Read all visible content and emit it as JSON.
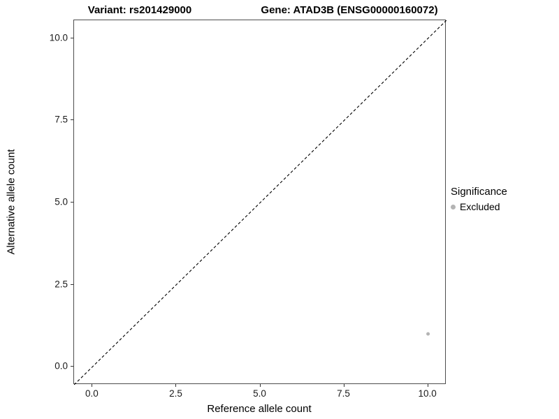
{
  "titles": {
    "left": "Variant: rs201429000",
    "right": "Gene: ATAD3B (ENSG00000160072)"
  },
  "axes": {
    "x_label": "Reference allele count",
    "y_label": "Alternative allele count"
  },
  "legend": {
    "title": "Significance",
    "items": [
      {
        "label": "Excluded",
        "color": "#b4b4b4"
      }
    ]
  },
  "chart_data": {
    "type": "scatter",
    "title": "Variant: rs201429000    Gene: ATAD3B (ENSG00000160072)",
    "xlabel": "Reference allele count",
    "ylabel": "Alternative allele count",
    "xlim": [
      -0.55,
      10.55
    ],
    "ylim": [
      -0.55,
      10.55
    ],
    "xticks": [
      0.0,
      2.5,
      5.0,
      7.5,
      10.0
    ],
    "yticks": [
      0.0,
      2.5,
      5.0,
      7.5,
      10.0
    ],
    "tick_decimals": 1,
    "grid": false,
    "legend_position": "right",
    "series": [
      {
        "name": "Excluded",
        "color": "#b4b4b4",
        "points": [
          {
            "x": 10,
            "y": 1
          }
        ]
      }
    ],
    "reference_line": {
      "type": "identity",
      "slope": 1,
      "intercept": 0,
      "style": "dashed",
      "color": "#000000"
    }
  }
}
